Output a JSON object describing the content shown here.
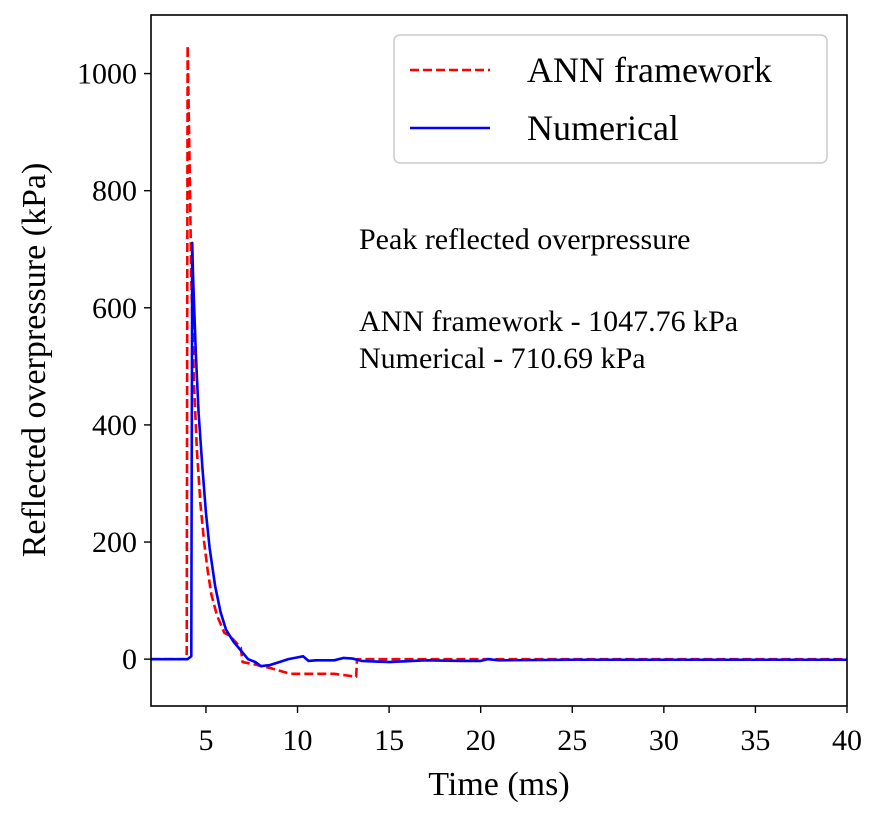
{
  "chart_data": {
    "type": "line",
    "title": "",
    "xlabel": "Time (ms)",
    "ylabel": "Reflected overpressure (kPa)",
    "xlim": [
      2,
      40
    ],
    "ylim": [
      -80,
      1100
    ],
    "xticks": [
      5,
      10,
      15,
      20,
      25,
      30,
      35,
      40
    ],
    "yticks": [
      0,
      200,
      400,
      600,
      800,
      1000
    ],
    "grid": false,
    "legend": "top-right",
    "series": [
      {
        "name": "ANN framework",
        "color": "#ff0000",
        "style": "dashed",
        "x": [
          2,
          3.9,
          3.95,
          4.0,
          4.1,
          4.2,
          4.35,
          4.5,
          4.7,
          4.9,
          5.1,
          5.3,
          5.6,
          6.0,
          6.3,
          6.6,
          6.9,
          7.0,
          7.5,
          8.5,
          9.6,
          11.0,
          12.0,
          13.2,
          13.25,
          14.0,
          20.0,
          30.0,
          40.0
        ],
        "y": [
          0,
          0,
          10,
          1047.76,
          860,
          650,
          470,
          360,
          265,
          200,
          150,
          110,
          75,
          45,
          40,
          30,
          20,
          -5,
          -8,
          -15,
          -25,
          -25,
          -25,
          -30,
          0,
          0,
          0,
          0,
          0
        ]
      },
      {
        "name": "Numerical",
        "color": "#0000ff",
        "style": "solid",
        "x": [
          2,
          4.0,
          4.2,
          4.25,
          4.3,
          4.45,
          4.6,
          4.8,
          5.0,
          5.2,
          5.5,
          5.8,
          6.1,
          6.5,
          6.9,
          7.3,
          7.7,
          8.0,
          8.5,
          9.0,
          9.5,
          10.0,
          10.3,
          10.6,
          11.0,
          12.0,
          12.5,
          13.0,
          13.5,
          15.0,
          17.0,
          19.0,
          20.0,
          20.4,
          21.0,
          25.0,
          30.0,
          40.0
        ],
        "y": [
          0,
          0,
          5,
          710.69,
          650,
          520,
          420,
          330,
          250,
          190,
          125,
          80,
          50,
          30,
          15,
          0,
          -5,
          -12,
          -10,
          -5,
          0,
          3,
          5,
          -3,
          -2,
          -2,
          2,
          1,
          -3,
          -5,
          -2,
          -3,
          -3,
          0,
          -2,
          -1,
          -1,
          -1
        ]
      }
    ],
    "annotations": {
      "heading": "Peak reflected overpressure",
      "line1": "ANN framework - 1047.76 kPa",
      "line2": "Numerical - 710.69 kPa"
    }
  }
}
